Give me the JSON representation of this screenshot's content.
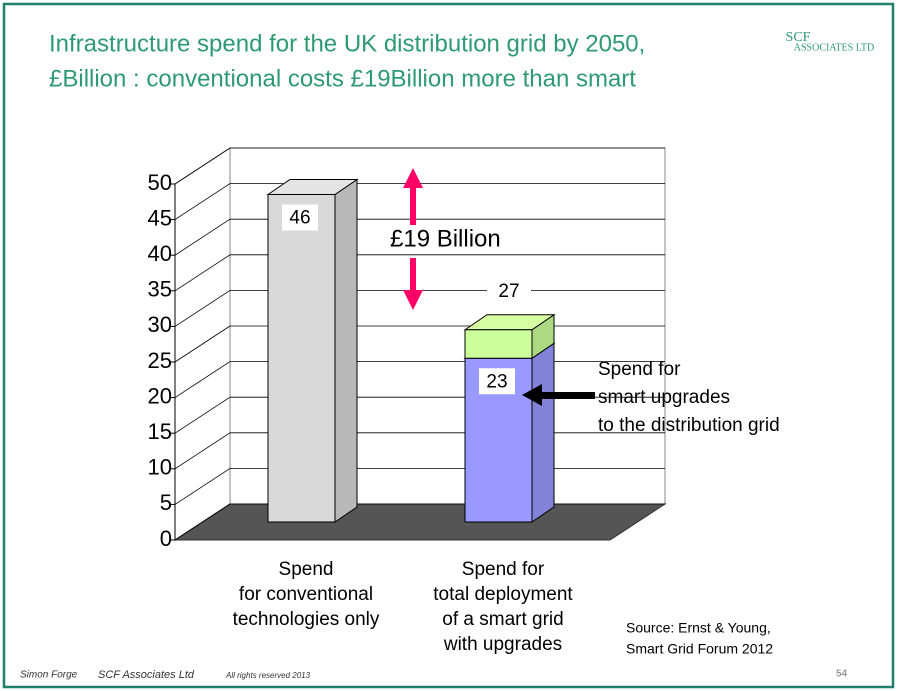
{
  "chart_data": {
    "type": "bar",
    "stacked": true,
    "title": [
      "Infrastructure spend for the UK distribution grid by 2050,",
      "£Billion : conventional costs £19Billion more than smart"
    ],
    "logo": {
      "top": "SCF",
      "bottom": "ASSOCIATES LTD"
    },
    "categories": [
      [
        "Spend",
        "for conventional",
        "technologies only"
      ],
      [
        "Spend for",
        "total deployment",
        "of a smart grid",
        "with upgrades"
      ]
    ],
    "series": [
      {
        "color": "#d9d9d9",
        "label": true,
        "values": [
          46,
          null
        ]
      },
      {
        "color": "#9999ff",
        "label": true,
        "values": [
          null,
          23
        ]
      },
      {
        "color": "#ccff99",
        "label": false,
        "values": [
          null,
          4
        ]
      }
    ],
    "totals": [
      null,
      27
    ],
    "ylim": [
      0,
      50
    ],
    "yticks": [
      0,
      5,
      10,
      15,
      20,
      25,
      30,
      35,
      40,
      45,
      50
    ],
    "grid": true,
    "annotations": {
      "gap": "£19 Billion",
      "note": [
        "Spend for",
        "smart upgrades",
        "to the distribution grid"
      ],
      "source": [
        "Source: Ernst & Young,",
        "Smart Grid Forum 2012"
      ]
    },
    "footer": {
      "author": "Simon Forge",
      "company": "SCF  Associates Ltd",
      "rights": "All rights reserved  2013",
      "page": 54
    }
  }
}
